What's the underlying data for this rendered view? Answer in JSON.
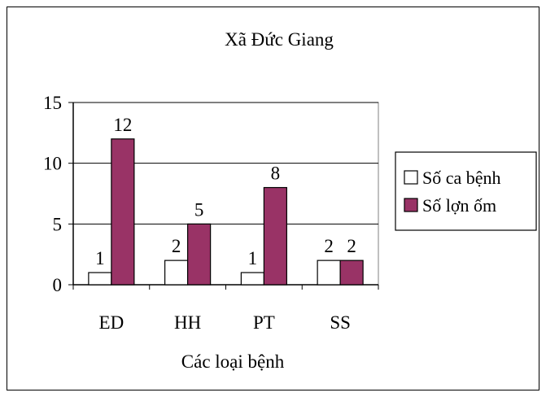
{
  "chart_data": {
    "type": "bar",
    "title": "Xã Đức Giang",
    "xlabel": "Các loại bệnh",
    "ylabel": "",
    "categories": [
      "ED",
      "HH",
      "PT",
      "SS"
    ],
    "ylim": [
      0,
      15
    ],
    "yticks": [
      0,
      5,
      10,
      15
    ],
    "grid": true,
    "legend": "right",
    "series": [
      {
        "name": "Số ca bệnh",
        "values": [
          1,
          2,
          1,
          2
        ],
        "color": "#ffffff"
      },
      {
        "name": "Số lợn ốm",
        "values": [
          12,
          5,
          8,
          2
        ],
        "color": "#993366"
      }
    ]
  }
}
